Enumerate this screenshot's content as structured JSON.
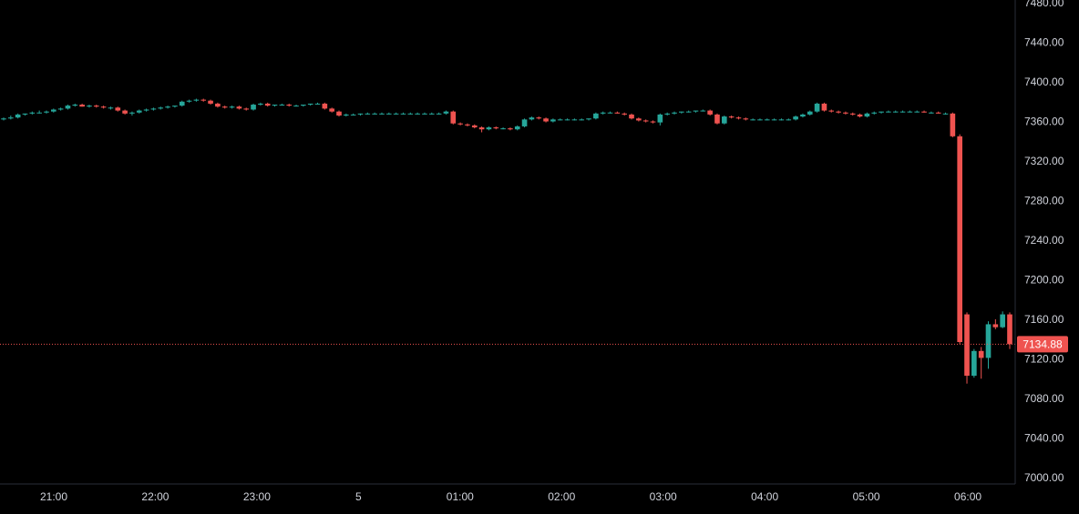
{
  "chart_data": {
    "type": "candlestick",
    "x_ticks": [
      "21:00",
      "22:00",
      "23:00",
      "5",
      "01:00",
      "02:00",
      "03:00",
      "04:00",
      "05:00",
      "06:00"
    ],
    "y_ticks": [
      "7000.00",
      "7040.00",
      "7080.00",
      "7120.00",
      "7160.00",
      "7200.00",
      "7240.00",
      "7280.00",
      "7320.00",
      "7360.00",
      "7400.00",
      "7440.00",
      "7480.00"
    ],
    "ylim": [
      7000,
      7480
    ],
    "last_price": 7134.88,
    "last_price_label": "7134.88",
    "colors": {
      "up": "#26a69a",
      "down": "#ef5350",
      "axis_text": "#d1d4dc",
      "background": "#000000",
      "grid_line": "#2a2e39"
    },
    "candles": [
      [
        7362,
        7364,
        7361,
        7363
      ],
      [
        7363,
        7366,
        7362,
        7364
      ],
      [
        7364,
        7368,
        7363,
        7367
      ],
      [
        7367,
        7368,
        7366,
        7368
      ],
      [
        7368,
        7370,
        7367,
        7369
      ],
      [
        7369,
        7371,
        7368,
        7369
      ],
      [
        7369,
        7371,
        7368,
        7370
      ],
      [
        7370,
        7373,
        7369,
        7372
      ],
      [
        7372,
        7374,
        7371,
        7373
      ],
      [
        7373,
        7377,
        7372,
        7376
      ],
      [
        7376,
        7378,
        7375,
        7377
      ],
      [
        7377,
        7378,
        7375,
        7375
      ],
      [
        7375,
        7377,
        7374,
        7376
      ],
      [
        7376,
        7377,
        7374,
        7375
      ],
      [
        7375,
        7376,
        7373,
        7374
      ],
      [
        7374,
        7375,
        7372,
        7374
      ],
      [
        7374,
        7375,
        7370,
        7371
      ],
      [
        7371,
        7372,
        7367,
        7368
      ],
      [
        7368,
        7370,
        7366,
        7369
      ],
      [
        7369,
        7372,
        7368,
        7371
      ],
      [
        7371,
        7373,
        7370,
        7372
      ],
      [
        7372,
        7374,
        7371,
        7373
      ],
      [
        7373,
        7375,
        7372,
        7374
      ],
      [
        7374,
        7376,
        7373,
        7375
      ],
      [
        7375,
        7376,
        7374,
        7376
      ],
      [
        7376,
        7381,
        7375,
        7380
      ],
      [
        7380,
        7382,
        7379,
        7381
      ],
      [
        7381,
        7383,
        7380,
        7382
      ],
      [
        7382,
        7383,
        7380,
        7381
      ],
      [
        7381,
        7382,
        7377,
        7378
      ],
      [
        7378,
        7379,
        7374,
        7375
      ],
      [
        7375,
        7376,
        7373,
        7374
      ],
      [
        7374,
        7376,
        7373,
        7375
      ],
      [
        7375,
        7376,
        7372,
        7373
      ],
      [
        7373,
        7374,
        7371,
        7372
      ],
      [
        7372,
        7378,
        7371,
        7377
      ],
      [
        7377,
        7379,
        7376,
        7378
      ],
      [
        7378,
        7379,
        7375,
        7376
      ],
      [
        7376,
        7377,
        7375,
        7377
      ],
      [
        7377,
        7378,
        7376,
        7377
      ],
      [
        7377,
        7378,
        7375,
        7376
      ],
      [
        7376,
        7377,
        7375,
        7376
      ],
      [
        7376,
        7377,
        7375,
        7377
      ],
      [
        7377,
        7378,
        7376,
        7378
      ],
      [
        7378,
        7379,
        7377,
        7378
      ],
      [
        7378,
        7379,
        7372,
        7373
      ],
      [
        7373,
        7374,
        7369,
        7370
      ],
      [
        7370,
        7371,
        7365,
        7366
      ],
      [
        7366,
        7368,
        7365,
        7367
      ],
      [
        7367,
        7368,
        7366,
        7367
      ],
      [
        7367,
        7368,
        7366,
        7368
      ],
      [
        7368,
        7369,
        7367,
        7368
      ],
      [
        7368,
        7369,
        7367,
        7368
      ],
      [
        7368,
        7369,
        7367,
        7368
      ],
      [
        7368,
        7369,
        7367,
        7368
      ],
      [
        7368,
        7369,
        7367,
        7368
      ],
      [
        7368,
        7369,
        7367,
        7368
      ],
      [
        7368,
        7369,
        7367,
        7368
      ],
      [
        7368,
        7369,
        7367,
        7368
      ],
      [
        7368,
        7369,
        7367,
        7368
      ],
      [
        7368,
        7369,
        7367,
        7368
      ],
      [
        7368,
        7369,
        7367,
        7368
      ],
      [
        7368,
        7371,
        7367,
        7370
      ],
      [
        7370,
        7371,
        7357,
        7358
      ],
      [
        7358,
        7359,
        7356,
        7357
      ],
      [
        7357,
        7358,
        7355,
        7356
      ],
      [
        7356,
        7357,
        7353,
        7354
      ],
      [
        7354,
        7355,
        7349,
        7352
      ],
      [
        7352,
        7355,
        7351,
        7354
      ],
      [
        7354,
        7355,
        7352,
        7353
      ],
      [
        7353,
        7354,
        7352,
        7353
      ],
      [
        7353,
        7354,
        7351,
        7352
      ],
      [
        7352,
        7356,
        7351,
        7355
      ],
      [
        7355,
        7363,
        7354,
        7362
      ],
      [
        7362,
        7365,
        7361,
        7364
      ],
      [
        7364,
        7365,
        7362,
        7363
      ],
      [
        7363,
        7364,
        7359,
        7360
      ],
      [
        7360,
        7363,
        7359,
        7362
      ],
      [
        7362,
        7363,
        7361,
        7362
      ],
      [
        7362,
        7363,
        7361,
        7362
      ],
      [
        7362,
        7363,
        7361,
        7362
      ],
      [
        7362,
        7363,
        7361,
        7362
      ],
      [
        7362,
        7363,
        7361,
        7363
      ],
      [
        7363,
        7369,
        7362,
        7368
      ],
      [
        7368,
        7370,
        7367,
        7369
      ],
      [
        7369,
        7370,
        7368,
        7369
      ],
      [
        7369,
        7370,
        7368,
        7368
      ],
      [
        7368,
        7369,
        7366,
        7367
      ],
      [
        7367,
        7368,
        7362,
        7363
      ],
      [
        7363,
        7364,
        7360,
        7361
      ],
      [
        7361,
        7362,
        7359,
        7360
      ],
      [
        7360,
        7361,
        7358,
        7359
      ],
      [
        7359,
        7368,
        7356,
        7367
      ],
      [
        7367,
        7369,
        7366,
        7368
      ],
      [
        7368,
        7370,
        7367,
        7369
      ],
      [
        7369,
        7370,
        7368,
        7370
      ],
      [
        7370,
        7371,
        7369,
        7370
      ],
      [
        7370,
        7371,
        7369,
        7371
      ],
      [
        7371,
        7372,
        7370,
        7371
      ],
      [
        7371,
        7372,
        7366,
        7367
      ],
      [
        7367,
        7368,
        7357,
        7358
      ],
      [
        7358,
        7366,
        7357,
        7365
      ],
      [
        7365,
        7366,
        7363,
        7364
      ],
      [
        7364,
        7365,
        7362,
        7363
      ],
      [
        7363,
        7364,
        7361,
        7362
      ],
      [
        7362,
        7363,
        7361,
        7362
      ],
      [
        7362,
        7363,
        7361,
        7362
      ],
      [
        7362,
        7363,
        7361,
        7362
      ],
      [
        7362,
        7363,
        7361,
        7362
      ],
      [
        7362,
        7363,
        7361,
        7362
      ],
      [
        7362,
        7363,
        7361,
        7362
      ],
      [
        7362,
        7366,
        7361,
        7365
      ],
      [
        7365,
        7368,
        7364,
        7367
      ],
      [
        7367,
        7371,
        7366,
        7370
      ],
      [
        7370,
        7379,
        7369,
        7378
      ],
      [
        7378,
        7379,
        7370,
        7371
      ],
      [
        7371,
        7372,
        7369,
        7370
      ],
      [
        7370,
        7371,
        7368,
        7369
      ],
      [
        7369,
        7370,
        7367,
        7368
      ],
      [
        7368,
        7369,
        7366,
        7367
      ],
      [
        7367,
        7368,
        7364,
        7365
      ],
      [
        7365,
        7369,
        7364,
        7368
      ],
      [
        7368,
        7370,
        7367,
        7369
      ],
      [
        7369,
        7370,
        7368,
        7370
      ],
      [
        7370,
        7371,
        7369,
        7370
      ],
      [
        7370,
        7371,
        7369,
        7370
      ],
      [
        7370,
        7371,
        7369,
        7370
      ],
      [
        7370,
        7371,
        7369,
        7370
      ],
      [
        7370,
        7371,
        7369,
        7370
      ],
      [
        7370,
        7371,
        7369,
        7369
      ],
      [
        7369,
        7370,
        7368,
        7369
      ],
      [
        7369,
        7370,
        7368,
        7368
      ],
      [
        7368,
        7369,
        7367,
        7368
      ],
      [
        7368,
        7369,
        7344,
        7345
      ],
      [
        7345,
        7347,
        7135,
        7137
      ],
      [
        7165,
        7167,
        7095,
        7103
      ],
      [
        7103,
        7130,
        7101,
        7128
      ],
      [
        7128,
        7132,
        7100,
        7121
      ],
      [
        7121,
        7158,
        7110,
        7155
      ],
      [
        7155,
        7160,
        7150,
        7152
      ],
      [
        7152,
        7168,
        7151,
        7165
      ],
      [
        7165,
        7167,
        7130,
        7134.88
      ]
    ]
  }
}
